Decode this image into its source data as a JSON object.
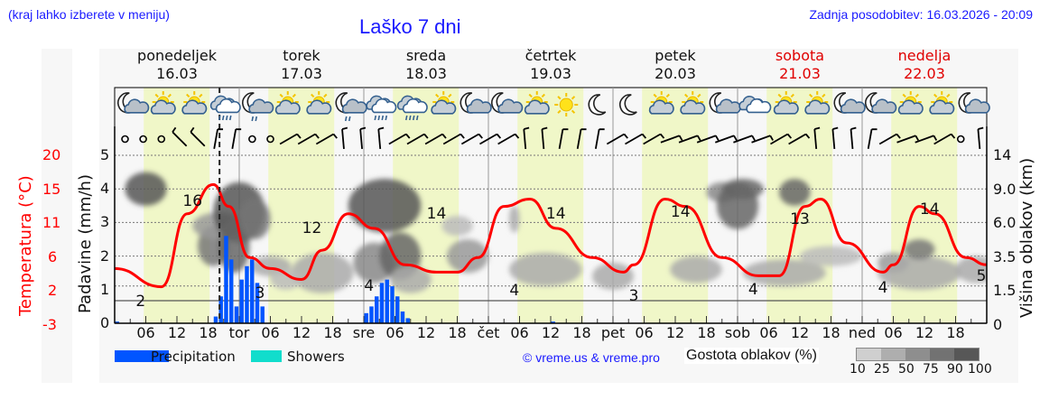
{
  "header": {
    "menu_note": "(kraj lahko izberete v meniju)",
    "title": "Laško 7 dni",
    "updated": "Zadnja posodobitev: 16.03.2026 - 20:09"
  },
  "days": [
    {
      "name": "ponedeljek",
      "date": "16.03",
      "weekend": false
    },
    {
      "name": "torek",
      "date": "17.03",
      "weekend": false
    },
    {
      "name": "sreda",
      "date": "18.03",
      "weekend": false
    },
    {
      "name": "četrtek",
      "date": "19.03",
      "weekend": false
    },
    {
      "name": "petek",
      "date": "20.03",
      "weekend": false
    },
    {
      "name": "sobota",
      "date": "21.03",
      "weekend": true
    },
    {
      "name": "nedelja",
      "date": "22.03",
      "weekend": true
    }
  ],
  "axes": {
    "temp_title": "Temperatura (°C)",
    "precip_title": "Padavine (mm/h)",
    "cloud_title": "Višina oblakov (km)",
    "temp_ticks": [
      "20",
      "15",
      "11",
      "6",
      "2",
      "-3"
    ],
    "precip_ticks": [
      "5",
      "4",
      "3",
      "2",
      "1",
      "0"
    ],
    "cloud_ticks": [
      "14",
      "9.0",
      "6.0",
      "3.5",
      "1.5",
      "0"
    ],
    "x_ticks": [
      "06",
      "12",
      "18",
      "tor",
      "06",
      "12",
      "18",
      "sre",
      "06",
      "12",
      "18",
      "čet",
      "06",
      "12",
      "18",
      "pet",
      "06",
      "12",
      "18",
      "sob",
      "06",
      "12",
      "18",
      "ned",
      "06",
      "12",
      "18"
    ]
  },
  "legend": {
    "precipitation": "Precipitation",
    "showers": "Showers",
    "credit": "© vreme.us & vreme.pro",
    "cloud_density": "Gostota oblakov (%)",
    "density_scale": [
      "10",
      "25",
      "50",
      "75",
      "90",
      "100"
    ],
    "colors": {
      "precipitation": "#0055ff",
      "showers": "#11ddcc",
      "temperature": "#ff0000",
      "daylight": "#f0f7c8"
    }
  },
  "chart_data": {
    "type": "line",
    "title": "Laško 7 dni",
    "x_unit": "hours from Mon 16.03 00:00",
    "xlim": [
      0,
      168
    ],
    "now_marker_hour": 20.2,
    "series": [
      {
        "name": "Temperatura (°C)",
        "color": "#ff0000",
        "points": [
          [
            0,
            4.5
          ],
          [
            9,
            2
          ],
          [
            14,
            12
          ],
          [
            19,
            16
          ],
          [
            22,
            13
          ],
          [
            26,
            6
          ],
          [
            30,
            4.5
          ],
          [
            36,
            3
          ],
          [
            40,
            7
          ],
          [
            45,
            12
          ],
          [
            50,
            10
          ],
          [
            56,
            5
          ],
          [
            62,
            4
          ],
          [
            66,
            4
          ],
          [
            70,
            6
          ],
          [
            75,
            13
          ],
          [
            80,
            14
          ],
          [
            85,
            10
          ],
          [
            92,
            6
          ],
          [
            98,
            4
          ],
          [
            100,
            5
          ],
          [
            106,
            14
          ],
          [
            110,
            13
          ],
          [
            117,
            6
          ],
          [
            124,
            3.5
          ],
          [
            128,
            3.5
          ],
          [
            133,
            13
          ],
          [
            136,
            14
          ],
          [
            141,
            8
          ],
          [
            148,
            4
          ],
          [
            150,
            5
          ],
          [
            155,
            13
          ],
          [
            158,
            12
          ],
          [
            164,
            6
          ],
          [
            168,
            5
          ]
        ],
        "labels": [
          {
            "hour": 5,
            "value": "2"
          },
          {
            "hour": 15,
            "value": "16"
          },
          {
            "hour": 28,
            "value": "3"
          },
          {
            "hour": 38,
            "value": "12"
          },
          {
            "hour": 49,
            "value": "4"
          },
          {
            "hour": 62,
            "value": "14"
          },
          {
            "hour": 77,
            "value": "4"
          },
          {
            "hour": 85,
            "value": "14"
          },
          {
            "hour": 100,
            "value": "3"
          },
          {
            "hour": 109,
            "value": "14"
          },
          {
            "hour": 123,
            "value": "4"
          },
          {
            "hour": 132,
            "value": "13"
          },
          {
            "hour": 148,
            "value": "4"
          },
          {
            "hour": 157,
            "value": "14"
          },
          {
            "hour": 168,
            "value": "5"
          }
        ]
      },
      {
        "name": "Precipitation (mm/h)",
        "type": "bar",
        "color": "#0055ff",
        "points": [
          [
            0,
            0.05
          ],
          [
            19,
            0.2
          ],
          [
            20,
            0.8
          ],
          [
            21,
            2.6
          ],
          [
            22,
            1.9
          ],
          [
            23,
            0.5
          ],
          [
            24,
            1.3
          ],
          [
            25,
            1.7
          ],
          [
            26,
            1.9
          ],
          [
            27,
            1.2
          ],
          [
            28,
            0.5
          ],
          [
            48,
            0.3
          ],
          [
            49,
            0.5
          ],
          [
            50,
            0.8
          ],
          [
            51,
            1.2
          ],
          [
            52,
            1.3
          ],
          [
            53,
            1.1
          ],
          [
            54,
            0.8
          ],
          [
            55,
            0.35
          ],
          [
            56,
            0.15
          ],
          [
            84,
            0.05
          ]
        ]
      }
    ],
    "ylabel_left": "Padavine (mm/h)",
    "ylim": [
      0,
      5
    ],
    "ylabel_right": "Višina oblakov (km)",
    "y2_ticks": [
      "0",
      "1.5",
      "3.5",
      "6.0",
      "9.0",
      "14"
    ],
    "temp_axis_ticks": [
      "-3",
      "2",
      "6",
      "11",
      "15",
      "20"
    ],
    "grid": true,
    "legend_position": "bottom",
    "weather_icons": [
      "night-cloud",
      "sun-cloud",
      "sun-cloud",
      "rain-cloud",
      "night-rain",
      "sun-cloud",
      "sun-cloud",
      "night-rain",
      "rain-cloud",
      "rain-cloud",
      "sun-cloud",
      "night-cloud",
      "night-cloud",
      "sun-cloud",
      "sun",
      "moon",
      "moon",
      "sun-cloud",
      "sun-cloud",
      "night-cloud",
      "cloud",
      "sun-cloud",
      "sun-cloud",
      "night-cloud",
      "night-cloud",
      "sun-cloud",
      "sun-cloud",
      "night-cloud"
    ]
  }
}
